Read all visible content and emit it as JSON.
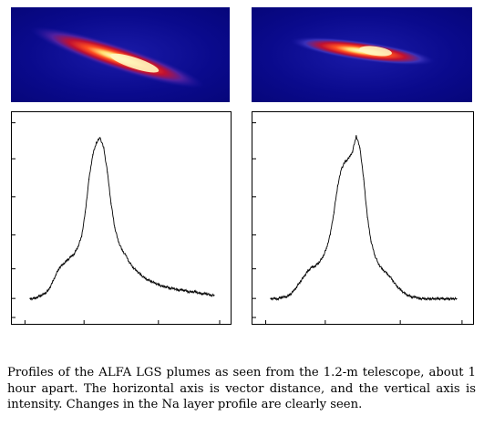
{
  "figure": {
    "panels": [
      {
        "id": "left",
        "plume_shape": "elongated diagonal, bright core center-right"
      },
      {
        "id": "right",
        "plume_shape": "shorter, bright core upper-right"
      }
    ],
    "colors": {
      "background_blue": "#0a0a8c",
      "plume_red": "#d42020",
      "plume_core": "#ffffe0"
    }
  },
  "chart_data": [
    {
      "type": "line",
      "title": "",
      "xlabel": "",
      "ylabel": "",
      "grid": false,
      "x": [
        0,
        2,
        4,
        6,
        8,
        10,
        12,
        14,
        16,
        18,
        20,
        22,
        24,
        26,
        28,
        30,
        32,
        34,
        36,
        38,
        40,
        42,
        44,
        46,
        48,
        50,
        52,
        54,
        56,
        58,
        60,
        62,
        64,
        66,
        68,
        70,
        72,
        74,
        76,
        78,
        80,
        82,
        84,
        86,
        88,
        90,
        92,
        94,
        96,
        98,
        100
      ],
      "y": [
        5,
        5,
        6,
        7,
        8,
        10,
        14,
        19,
        23,
        25,
        27,
        29,
        31,
        35,
        41,
        55,
        74,
        88,
        95,
        98,
        92,
        78,
        60,
        46,
        38,
        33,
        30,
        26,
        23,
        21,
        19,
        17,
        16,
        15,
        14,
        13,
        12,
        12,
        11,
        11,
        10,
        10,
        10,
        9,
        9,
        9,
        8,
        8,
        8,
        7,
        7
      ]
    },
    {
      "type": "line",
      "title": "",
      "xlabel": "",
      "ylabel": "",
      "grid": false,
      "x": [
        0,
        2,
        4,
        6,
        8,
        10,
        12,
        14,
        16,
        18,
        20,
        22,
        24,
        26,
        28,
        30,
        32,
        34,
        36,
        38,
        40,
        42,
        44,
        46,
        48,
        50,
        52,
        54,
        56,
        58,
        60,
        62,
        64,
        66,
        68,
        70,
        72,
        74,
        76,
        78,
        80,
        82,
        84,
        86,
        88,
        90,
        92,
        94,
        96,
        98,
        100
      ],
      "y": [
        5,
        5,
        5,
        6,
        6,
        7,
        9,
        12,
        15,
        18,
        21,
        23,
        24,
        26,
        29,
        34,
        42,
        55,
        70,
        80,
        84,
        86,
        90,
        99,
        92,
        74,
        52,
        38,
        30,
        25,
        22,
        20,
        18,
        15,
        12,
        10,
        8,
        7,
        6,
        6,
        5,
        5,
        5,
        5,
        5,
        5,
        5,
        5,
        5,
        5,
        5
      ]
    }
  ],
  "caption": "Profiles of the ALFA LGS plumes as seen from the 1.2-m telescope, about 1 hour apart. The horizontal axis is vector distance, and the vertical axis is intensity. Changes in the Na layer profile are clearly seen."
}
